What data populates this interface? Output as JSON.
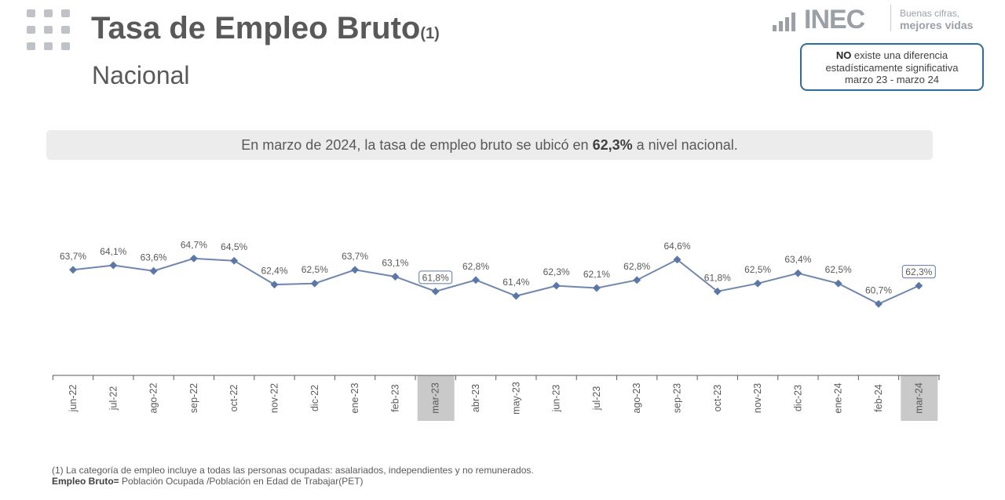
{
  "header": {
    "title": "Tasa de Empleo Bruto",
    "title_note": "(1)",
    "subtitle": "Nacional"
  },
  "logo": {
    "name": "INEC",
    "slogan_line1": "Buenas cifras,",
    "slogan_line2": "mejores vidas"
  },
  "significance": {
    "bold": "NO",
    "text1": " existe una diferencia",
    "text2": "estadísticamente significativa",
    "text3": "marzo 23 - marzo 24"
  },
  "banner": {
    "before": "En marzo de 2024, la tasa de empleo bruto se ubicó en ",
    "value": "62,3%",
    "after": " a nivel nacional."
  },
  "chart_data": {
    "type": "line",
    "categories": [
      "jun-22",
      "jul-22",
      "ago-22",
      "sep-22",
      "oct-22",
      "nov-22",
      "dic-22",
      "ene-23",
      "feb-23",
      "mar-23",
      "abr-23",
      "may-23",
      "jun-23",
      "jul-23",
      "ago-23",
      "sep-23",
      "oct-23",
      "nov-23",
      "dic-23",
      "ene-24",
      "feb-24",
      "mar-24"
    ],
    "values": [
      63.7,
      64.1,
      63.6,
      64.7,
      64.5,
      62.4,
      62.5,
      63.7,
      63.1,
      61.8,
      62.8,
      61.4,
      62.3,
      62.1,
      62.8,
      64.6,
      61.8,
      62.5,
      63.4,
      62.5,
      60.7,
      62.3
    ],
    "labels": [
      "63,7%",
      "64,1%",
      "63,6%",
      "64,7%",
      "64,5%",
      "62,4%",
      "62,5%",
      "63,7%",
      "63,1%",
      "61,8%",
      "62,8%",
      "61,4%",
      "62,3%",
      "62,1%",
      "62,8%",
      "64,6%",
      "61,8%",
      "62,5%",
      "63,4%",
      "62,5%",
      "60,7%",
      "62,3%"
    ],
    "highlighted": [
      "mar-23",
      "mar-24"
    ],
    "line_color": "#6f87b0",
    "marker_color": "#5b77a8",
    "highlight_color": "#c9c9c9"
  },
  "footnote": {
    "line1": "(1) La categoría de empleo incluye a todas las personas ocupadas: asalariados, independientes y no remunerados.",
    "line2_bold": "Empleo Bruto=",
    "line2_text": " Población Ocupada /Población en Edad de Trabajar(PET)"
  }
}
